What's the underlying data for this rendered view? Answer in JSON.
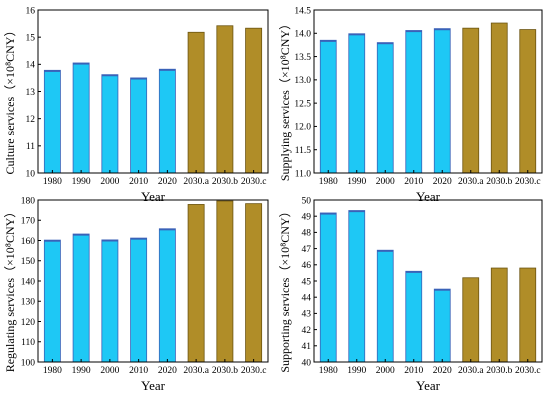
{
  "colors": {
    "observed": "#1ec8f5",
    "observed_edge": "#3a62b8",
    "projected": "#b08d28",
    "projected_edge": "#6b5410"
  },
  "chart_data": [
    {
      "type": "bar",
      "ylabel": "Culture services（×10⁸CNY）",
      "xlabel": "Year",
      "categories": [
        "1980",
        "1990",
        "2000",
        "2010",
        "2020",
        "2030.a",
        "2030.b",
        "2030.c"
      ],
      "values": [
        13.78,
        14.05,
        13.62,
        13.5,
        13.82,
        15.18,
        15.42,
        15.33
      ],
      "ylim": [
        10,
        16
      ],
      "yticks": [
        10,
        11,
        12,
        13,
        14,
        15,
        16
      ],
      "grid": false
    },
    {
      "type": "bar",
      "ylabel": "Supplying services（×10⁸CNY）",
      "xlabel": "Year",
      "categories": [
        "1980",
        "1990",
        "2000",
        "2010",
        "2020",
        "2030.a",
        "2030.b",
        "2030.c"
      ],
      "values": [
        13.85,
        13.99,
        13.8,
        14.06,
        14.1,
        14.11,
        14.22,
        14.08
      ],
      "ylim": [
        11,
        14.5
      ],
      "yticks": [
        11.0,
        11.5,
        12.0,
        12.5,
        13.0,
        13.5,
        14.0,
        14.5
      ],
      "grid": false
    },
    {
      "type": "bar",
      "ylabel": "Regulating services（×10⁸CNY）",
      "xlabel": "Year",
      "categories": [
        "1980",
        "1990",
        "2000",
        "2010",
        "2020",
        "2030.a",
        "2030.b",
        "2030.c"
      ],
      "values": [
        160.2,
        163.2,
        160.3,
        161.2,
        165.8,
        177.8,
        179.5,
        178.2
      ],
      "ylim": [
        100,
        180
      ],
      "yticks": [
        100,
        110,
        120,
        130,
        140,
        150,
        160,
        170,
        180
      ],
      "grid": false
    },
    {
      "type": "bar",
      "ylabel": "Supporting services（×10⁸CNY）",
      "xlabel": "Year",
      "categories": [
        "1980",
        "1990",
        "2000",
        "2010",
        "2020",
        "2030.a",
        "2030.b",
        "2030.c"
      ],
      "values": [
        49.2,
        49.35,
        46.9,
        45.6,
        44.5,
        45.2,
        45.8,
        45.8
      ],
      "ylim": [
        40,
        50
      ],
      "yticks": [
        40,
        41,
        42,
        43,
        44,
        45,
        46,
        47,
        48,
        49,
        50
      ],
      "grid": false
    }
  ]
}
